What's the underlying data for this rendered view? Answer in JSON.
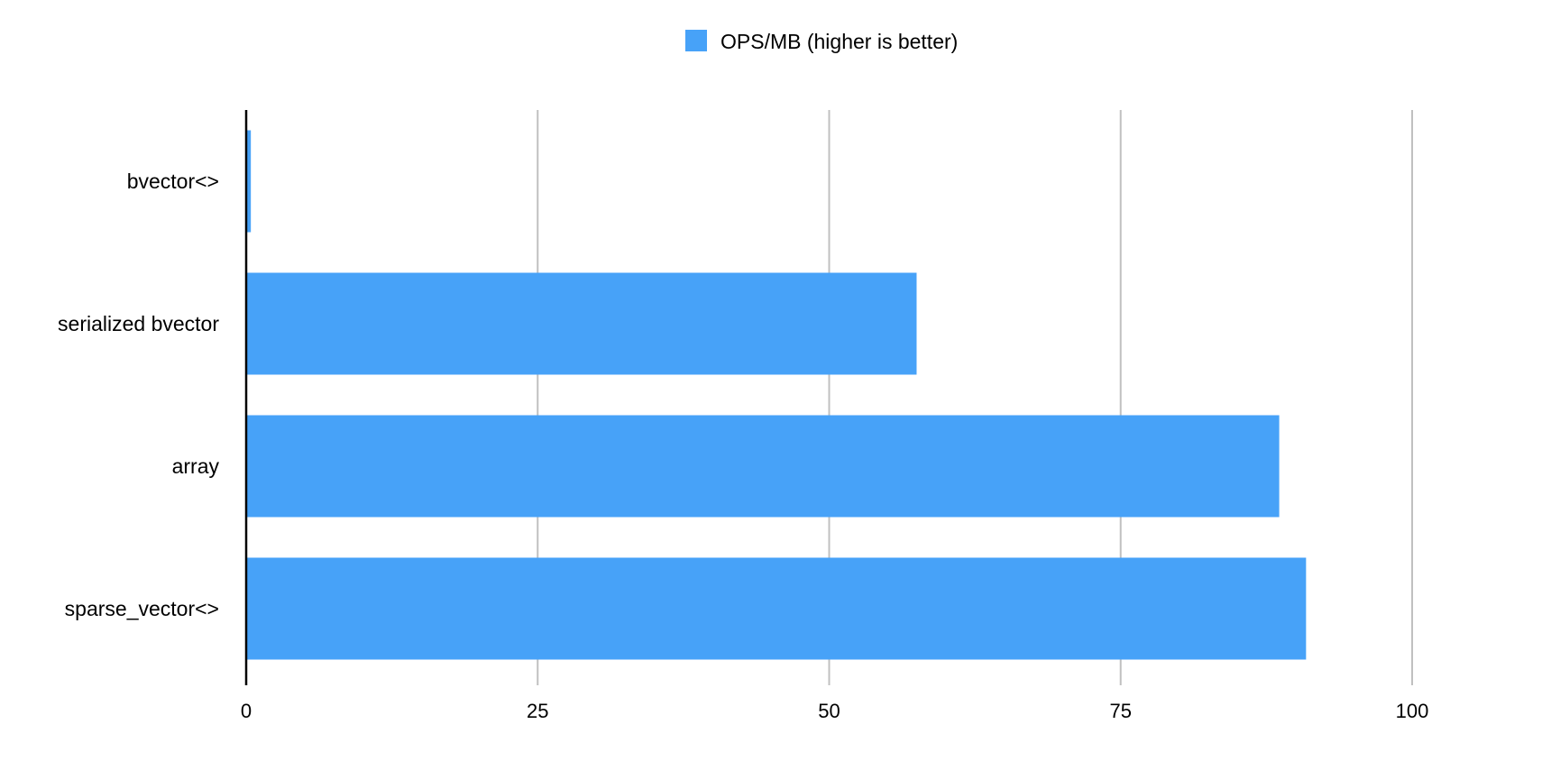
{
  "chart_data": {
    "type": "bar",
    "orientation": "horizontal",
    "categories": [
      "bvector<>",
      "serialized bvector",
      "array",
      "sparse_vector<>"
    ],
    "series": [
      {
        "name": "OPS/MB (higher is better)",
        "values": [
          0.4,
          57.5,
          88.6,
          90.9
        ],
        "color": "#47A2F8"
      }
    ],
    "xlim": [
      0,
      100
    ],
    "xticks": [
      0,
      25,
      50,
      75,
      100
    ],
    "grid": true,
    "legend_position": "top-center",
    "colors": {
      "bar": "#47A2F8",
      "grid": "#C0C0C0",
      "axis": "#000000"
    }
  }
}
